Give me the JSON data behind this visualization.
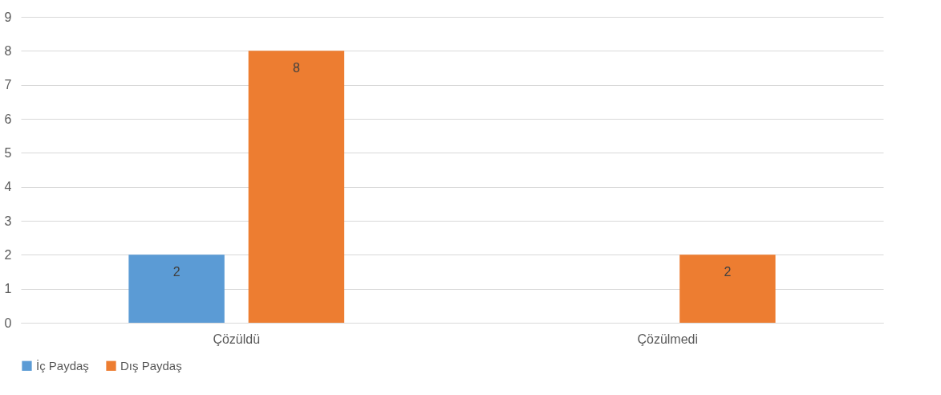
{
  "chart_data": {
    "type": "bar",
    "categories": [
      "Çözüldü",
      "Çözülmedi"
    ],
    "series": [
      {
        "name": "İç Paydaş",
        "color": "#5b9bd5",
        "values": [
          2,
          null
        ]
      },
      {
        "name": "Dış Paydaş",
        "color": "#ed7d31",
        "values": [
          8,
          2
        ]
      }
    ],
    "ylim": [
      0,
      9
    ],
    "yticks": [
      0,
      1,
      2,
      3,
      4,
      5,
      6,
      7,
      8,
      9
    ],
    "grid": "y",
    "legend": "bottom",
    "data_labels": true
  }
}
